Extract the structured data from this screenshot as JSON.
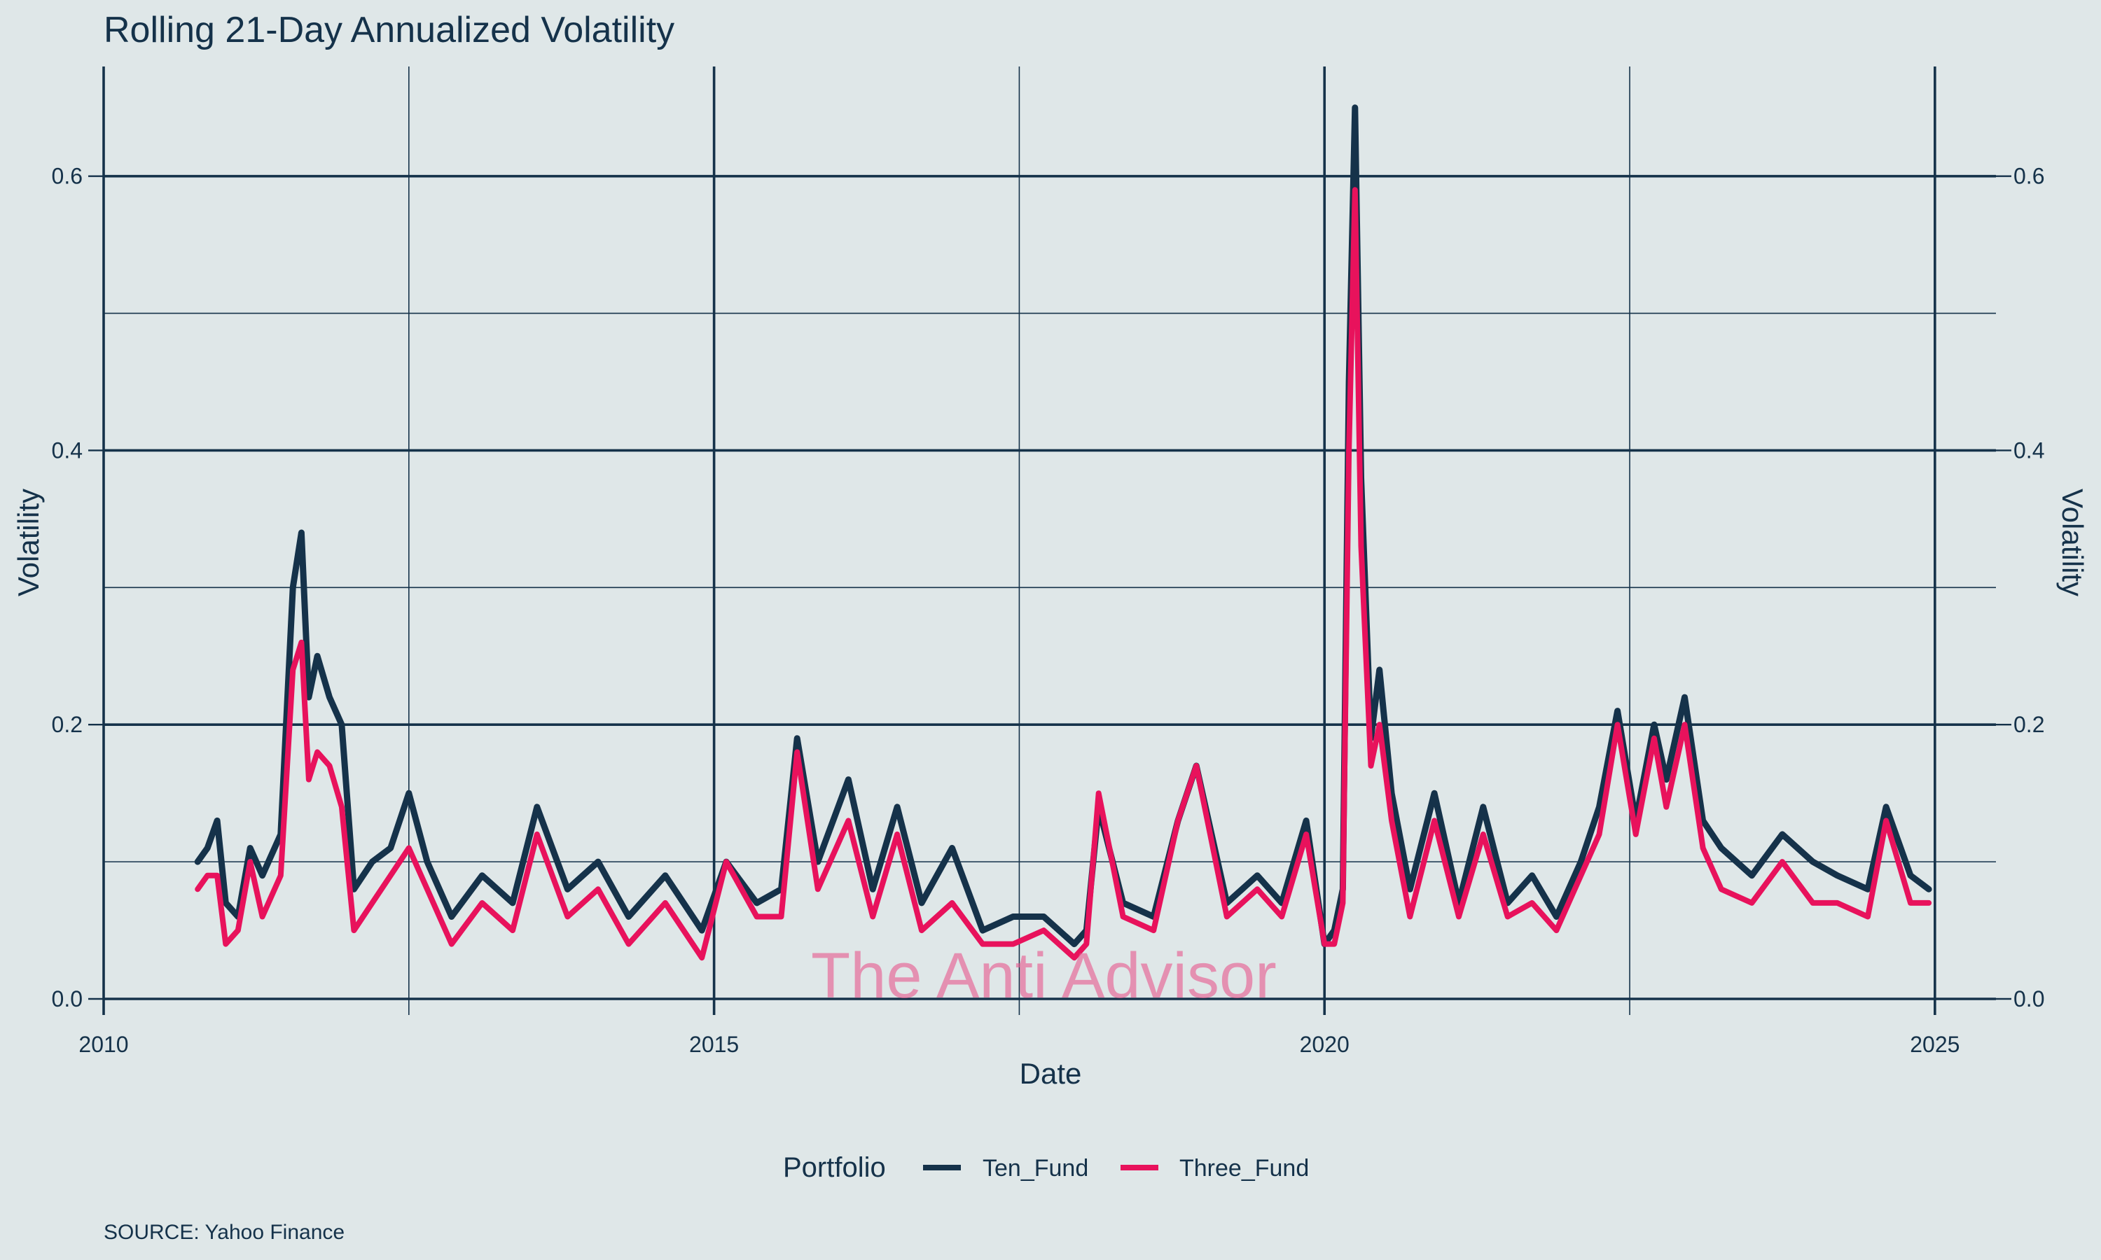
{
  "chart_data": {
    "type": "line",
    "title": "Rolling 21-Day Annualized Volatility",
    "xlabel": "Date",
    "ylabel": "Volatility",
    "ylabel_right": "Volatility",
    "xlim": [
      2010,
      2025.5
    ],
    "ylim": [
      0,
      0.68
    ],
    "x_ticks": [
      2010,
      2015,
      2020,
      2025
    ],
    "x_tick_labels": [
      "2010",
      "2015",
      "2020",
      "2025"
    ],
    "y_ticks": [
      0,
      0.2,
      0.4,
      0.6
    ],
    "y_tick_labels": [
      "0.0",
      "0.2",
      "0.4",
      "0.6"
    ],
    "minor_x_gridlines": [
      2012.5,
      2017.5,
      2022.5
    ],
    "minor_y_gridlines": [
      0.1,
      0.3,
      0.5
    ],
    "grid": true,
    "secondary_y_axis": true,
    "legend": {
      "title": "Portfolio",
      "position": "bottom"
    },
    "caption": "SOURCE: Yahoo Finance",
    "watermark": "The Anti Advisor",
    "colors": {
      "background": "#dfe7e8",
      "text": "#15324a",
      "grid": "#15324a",
      "watermark": "#e75b8f"
    },
    "series": [
      {
        "name": "Ten_Fund",
        "color": "#15324a",
        "x": [
          2010.77,
          2010.85,
          2010.93,
          2011.0,
          2011.1,
          2011.2,
          2011.3,
          2011.45,
          2011.55,
          2011.62,
          2011.68,
          2011.75,
          2011.85,
          2011.95,
          2012.05,
          2012.2,
          2012.35,
          2012.5,
          2012.65,
          2012.85,
          2013.1,
          2013.35,
          2013.55,
          2013.8,
          2014.05,
          2014.3,
          2014.6,
          2014.9,
          2015.1,
          2015.35,
          2015.55,
          2015.68,
          2015.85,
          2016.1,
          2016.3,
          2016.5,
          2016.7,
          2016.95,
          2017.2,
          2017.45,
          2017.7,
          2017.95,
          2018.05,
          2018.15,
          2018.35,
          2018.6,
          2018.8,
          2018.95,
          2019.2,
          2019.45,
          2019.65,
          2019.85,
          2020.0,
          2020.08,
          2020.15,
          2020.2,
          2020.25,
          2020.3,
          2020.38,
          2020.45,
          2020.55,
          2020.7,
          2020.9,
          2021.1,
          2021.3,
          2021.5,
          2021.7,
          2021.9,
          2022.1,
          2022.25,
          2022.4,
          2022.55,
          2022.7,
          2022.8,
          2022.95,
          2023.1,
          2023.25,
          2023.5,
          2023.75,
          2024.0,
          2024.2,
          2024.45,
          2024.6,
          2024.8,
          2024.95
        ],
        "values": [
          0.1,
          0.11,
          0.13,
          0.07,
          0.06,
          0.11,
          0.09,
          0.12,
          0.3,
          0.34,
          0.22,
          0.25,
          0.22,
          0.2,
          0.08,
          0.1,
          0.11,
          0.15,
          0.1,
          0.06,
          0.09,
          0.07,
          0.14,
          0.08,
          0.1,
          0.06,
          0.09,
          0.05,
          0.1,
          0.07,
          0.08,
          0.19,
          0.1,
          0.16,
          0.08,
          0.14,
          0.07,
          0.11,
          0.05,
          0.06,
          0.06,
          0.04,
          0.05,
          0.14,
          0.07,
          0.06,
          0.13,
          0.17,
          0.07,
          0.09,
          0.07,
          0.13,
          0.04,
          0.05,
          0.08,
          0.45,
          0.65,
          0.38,
          0.19,
          0.24,
          0.15,
          0.08,
          0.15,
          0.07,
          0.14,
          0.07,
          0.09,
          0.06,
          0.1,
          0.14,
          0.21,
          0.13,
          0.2,
          0.16,
          0.22,
          0.13,
          0.11,
          0.09,
          0.12,
          0.1,
          0.09,
          0.08,
          0.14,
          0.09,
          0.08
        ]
      },
      {
        "name": "Three_Fund",
        "color": "#e8125c",
        "x": [
          2010.77,
          2010.85,
          2010.93,
          2011.0,
          2011.1,
          2011.2,
          2011.3,
          2011.45,
          2011.55,
          2011.62,
          2011.68,
          2011.75,
          2011.85,
          2011.95,
          2012.05,
          2012.2,
          2012.35,
          2012.5,
          2012.65,
          2012.85,
          2013.1,
          2013.35,
          2013.55,
          2013.8,
          2014.05,
          2014.3,
          2014.6,
          2014.9,
          2015.1,
          2015.35,
          2015.55,
          2015.68,
          2015.85,
          2016.1,
          2016.3,
          2016.5,
          2016.7,
          2016.95,
          2017.2,
          2017.45,
          2017.7,
          2017.95,
          2018.05,
          2018.15,
          2018.35,
          2018.6,
          2018.8,
          2018.95,
          2019.2,
          2019.45,
          2019.65,
          2019.85,
          2020.0,
          2020.08,
          2020.15,
          2020.2,
          2020.25,
          2020.3,
          2020.38,
          2020.45,
          2020.55,
          2020.7,
          2020.9,
          2021.1,
          2021.3,
          2021.5,
          2021.7,
          2021.9,
          2022.1,
          2022.25,
          2022.4,
          2022.55,
          2022.7,
          2022.8,
          2022.95,
          2023.1,
          2023.25,
          2023.5,
          2023.75,
          2024.0,
          2024.2,
          2024.45,
          2024.6,
          2024.8,
          2024.95
        ],
        "values": [
          0.08,
          0.09,
          0.09,
          0.04,
          0.05,
          0.1,
          0.06,
          0.09,
          0.24,
          0.26,
          0.16,
          0.18,
          0.17,
          0.14,
          0.05,
          0.07,
          0.09,
          0.11,
          0.08,
          0.04,
          0.07,
          0.05,
          0.12,
          0.06,
          0.08,
          0.04,
          0.07,
          0.03,
          0.1,
          0.06,
          0.06,
          0.18,
          0.08,
          0.13,
          0.06,
          0.12,
          0.05,
          0.07,
          0.04,
          0.04,
          0.05,
          0.03,
          0.04,
          0.15,
          0.06,
          0.05,
          0.13,
          0.17,
          0.06,
          0.08,
          0.06,
          0.12,
          0.04,
          0.04,
          0.07,
          0.4,
          0.59,
          0.33,
          0.17,
          0.2,
          0.13,
          0.06,
          0.13,
          0.06,
          0.12,
          0.06,
          0.07,
          0.05,
          0.09,
          0.12,
          0.2,
          0.12,
          0.19,
          0.14,
          0.2,
          0.11,
          0.08,
          0.07,
          0.1,
          0.07,
          0.07,
          0.06,
          0.13,
          0.07,
          0.07
        ]
      }
    ]
  }
}
